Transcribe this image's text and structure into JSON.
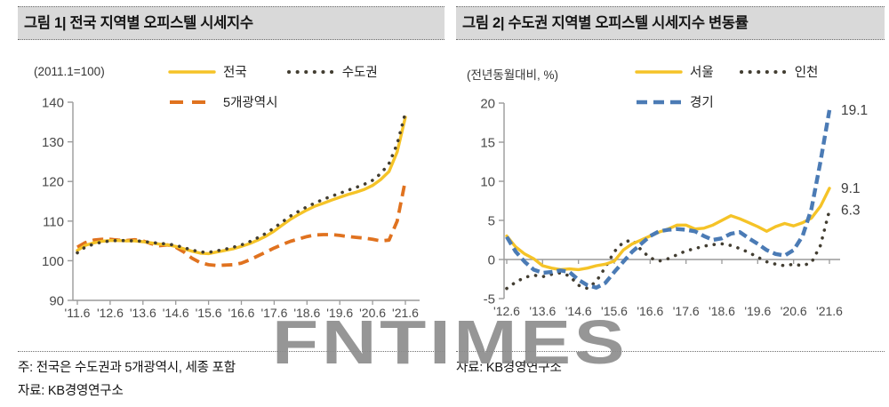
{
  "watermark": "FNTIMES",
  "footnotes": {
    "left": [
      "주: 전국은 수도권과 5개광역시, 세종 포함",
      "자료: KB경영연구소"
    ],
    "right": [
      "자료: KB경영연구소"
    ]
  },
  "chart_data": [
    {
      "type": "line",
      "title": "그림 1| 전국 지역별 오피스텔 시세지수",
      "unit_label": "(2011.1=100)",
      "ylim": [
        90,
        140
      ],
      "yticks": [
        90,
        100,
        110,
        120,
        130,
        140
      ],
      "x_axis_at": 90,
      "xtick_labels": [
        "'11.6",
        "'12.6",
        "'13.6",
        "'14.6",
        "'15.6",
        "'16.6",
        "'17.6",
        "'18.6",
        "'19.6",
        "'20.6",
        "'21.6"
      ],
      "x_frequency": "quarterly",
      "series": [
        {
          "name": "전국",
          "color": "#F5C327",
          "style": "solid",
          "values": [
            102.6,
            103.9,
            104.5,
            104.9,
            105.1,
            105.1,
            105.0,
            105.0,
            104.8,
            104.5,
            104.2,
            104.0,
            103.6,
            103.0,
            102.4,
            101.9,
            101.8,
            102.2,
            102.6,
            103.0,
            103.6,
            104.3,
            105.2,
            106.2,
            107.5,
            109.0,
            110.5,
            111.7,
            112.8,
            113.8,
            114.5,
            115.3,
            116.0,
            116.7,
            117.3,
            118.0,
            119.0,
            120.5,
            122.5,
            127.5,
            136.2
          ]
        },
        {
          "name": "수도권",
          "color": "#423D31",
          "style": "dotted",
          "values": [
            102.0,
            103.5,
            104.2,
            104.7,
            105.0,
            105.1,
            105.1,
            105.0,
            104.9,
            104.6,
            104.4,
            104.2,
            103.9,
            103.3,
            102.7,
            102.2,
            102.1,
            102.5,
            102.9,
            103.4,
            104.0,
            104.8,
            105.8,
            106.9,
            108.3,
            109.8,
            111.3,
            112.5,
            113.6,
            114.6,
            115.5,
            116.3,
            117.0,
            117.8,
            118.5,
            119.3,
            120.3,
            122.0,
            124.5,
            129.5,
            137.3
          ]
        },
        {
          "name": "5개광역시",
          "color": "#E0721F",
          "style": "dashed",
          "values": [
            103.4,
            104.6,
            105.2,
            105.4,
            105.4,
            105.2,
            105.1,
            105.3,
            105.0,
            104.3,
            103.8,
            104.0,
            103.4,
            102.2,
            100.6,
            99.5,
            99.0,
            98.8,
            98.9,
            99.0,
            99.4,
            100.2,
            101.2,
            102.2,
            103.2,
            104.1,
            104.9,
            105.5,
            106.1,
            106.5,
            106.6,
            106.6,
            106.4,
            106.1,
            105.9,
            105.7,
            105.4,
            105.0,
            105.2,
            110.0,
            120.3
          ]
        }
      ]
    },
    {
      "type": "line",
      "title": "그림 2| 수도권 지역별 오피스텔 시세지수 변동률",
      "unit_label": "(전년동월대비, %)",
      "ylim": [
        -5,
        20
      ],
      "yticks": [
        -5,
        0,
        5,
        10,
        15,
        20
      ],
      "x_axis_at": 0,
      "xtick_labels": [
        "'12.6",
        "'13.6",
        "'14.6",
        "'15.6",
        "'16.6",
        "'17.6",
        "'18.6",
        "'19.6",
        "'20.6",
        "'21.6"
      ],
      "x_frequency": "quarterly",
      "series": [
        {
          "name": "서울",
          "color": "#F5C327",
          "style": "solid",
          "end_label": "9.1",
          "values": [
            3.0,
            1.6,
            0.7,
            0.1,
            -0.8,
            -1.1,
            -1.3,
            -1.2,
            -1.3,
            -1.1,
            -0.8,
            -0.6,
            -0.2,
            1.2,
            2.0,
            2.5,
            3.0,
            3.5,
            3.9,
            4.4,
            4.4,
            3.9,
            4.0,
            4.4,
            5.0,
            5.6,
            5.2,
            4.7,
            4.2,
            3.6,
            4.2,
            4.6,
            4.3,
            4.7,
            5.3,
            6.8,
            9.1
          ]
        },
        {
          "name": "인천",
          "color": "#423D31",
          "style": "dotted",
          "end_label": "6.3",
          "values": [
            -3.7,
            -2.9,
            -2.3,
            -2.0,
            -2.2,
            -1.9,
            -1.7,
            -2.1,
            -3.3,
            -3.7,
            -2.8,
            -1.0,
            1.0,
            2.2,
            2.5,
            1.2,
            0.2,
            -0.2,
            0.1,
            0.6,
            1.1,
            1.4,
            1.7,
            1.9,
            2.0,
            1.8,
            1.4,
            0.9,
            0.3,
            -0.3,
            -0.6,
            -0.8,
            -0.6,
            -0.8,
            -0.4,
            1.8,
            6.3
          ]
        },
        {
          "name": "경기",
          "color": "#4B7BB5",
          "style": "dashed",
          "end_label": "19.1",
          "values": [
            2.9,
            1.0,
            -0.3,
            -1.3,
            -1.7,
            -1.6,
            -1.4,
            -1.6,
            -2.6,
            -3.3,
            -3.6,
            -3.0,
            -1.6,
            -0.3,
            1.0,
            2.0,
            3.0,
            3.6,
            3.8,
            3.9,
            3.8,
            3.6,
            3.0,
            2.5,
            2.7,
            3.3,
            3.5,
            2.7,
            2.0,
            1.2,
            0.7,
            0.5,
            1.2,
            3.0,
            6.5,
            12.5,
            19.1
          ]
        }
      ]
    }
  ]
}
